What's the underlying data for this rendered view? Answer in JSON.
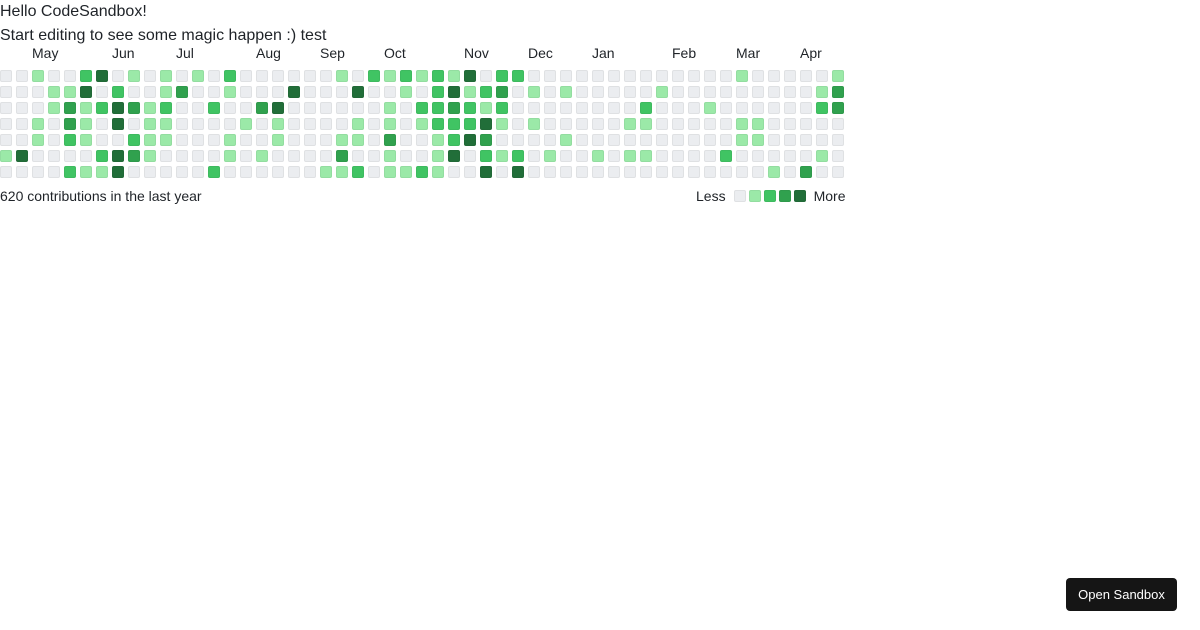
{
  "header": {
    "title": "Hello CodeSandbox!",
    "subtitle": "Start editing to see some magic happen :) test"
  },
  "calendar": {
    "months": [
      {
        "label": "May",
        "col": 2
      },
      {
        "label": "Jun",
        "col": 7
      },
      {
        "label": "Jul",
        "col": 11
      },
      {
        "label": "Aug",
        "col": 16
      },
      {
        "label": "Sep",
        "col": 20
      },
      {
        "label": "Oct",
        "col": 24
      },
      {
        "label": "Nov",
        "col": 29
      },
      {
        "label": "Dec",
        "col": 33
      },
      {
        "label": "Jan",
        "col": 37
      },
      {
        "label": "Feb",
        "col": 42
      },
      {
        "label": "Mar",
        "col": 46
      },
      {
        "label": "Apr",
        "col": 50
      }
    ],
    "level_colors": [
      "#ebedf0",
      "#9be9a8",
      "#40c463",
      "#30a14e",
      "#216e39"
    ],
    "rows": [
      [
        0,
        0,
        1,
        0,
        0,
        2,
        4,
        0,
        1,
        0,
        1,
        0,
        1,
        0,
        2,
        0,
        0,
        0,
        0,
        0,
        0,
        1,
        0,
        2,
        1,
        2,
        1,
        2,
        1,
        4,
        0,
        2,
        2,
        0,
        0,
        0,
        0,
        0,
        0,
        0,
        0,
        0,
        0,
        0,
        0,
        0,
        1,
        0,
        0,
        0,
        0,
        0,
        1
      ],
      [
        0,
        0,
        0,
        1,
        1,
        4,
        0,
        2,
        0,
        0,
        1,
        3,
        0,
        0,
        1,
        0,
        0,
        0,
        4,
        0,
        0,
        0,
        4,
        0,
        0,
        1,
        0,
        2,
        4,
        1,
        2,
        3,
        0,
        1,
        0,
        1,
        0,
        0,
        0,
        0,
        0,
        1,
        0,
        0,
        0,
        0,
        0,
        0,
        0,
        0,
        0,
        1,
        3
      ],
      [
        0,
        0,
        0,
        1,
        3,
        1,
        2,
        4,
        3,
        1,
        2,
        0,
        0,
        2,
        0,
        0,
        3,
        4,
        0,
        0,
        0,
        0,
        0,
        0,
        1,
        0,
        2,
        2,
        3,
        2,
        1,
        2,
        0,
        0,
        0,
        0,
        0,
        0,
        0,
        0,
        2,
        0,
        0,
        0,
        1,
        0,
        0,
        0,
        0,
        0,
        0,
        2,
        3
      ],
      [
        0,
        0,
        1,
        0,
        3,
        1,
        0,
        4,
        0,
        1,
        1,
        0,
        0,
        0,
        0,
        1,
        0,
        1,
        0,
        0,
        0,
        0,
        1,
        0,
        1,
        0,
        1,
        2,
        2,
        2,
        4,
        1,
        0,
        1,
        0,
        0,
        0,
        0,
        0,
        1,
        1,
        0,
        0,
        0,
        0,
        0,
        1,
        1,
        0,
        0,
        0,
        0,
        0
      ],
      [
        0,
        0,
        1,
        0,
        2,
        1,
        0,
        0,
        2,
        1,
        1,
        0,
        0,
        0,
        1,
        0,
        0,
        1,
        0,
        0,
        0,
        1,
        1,
        0,
        3,
        0,
        0,
        1,
        2,
        4,
        3,
        0,
        0,
        0,
        0,
        1,
        0,
        0,
        0,
        0,
        0,
        0,
        0,
        0,
        0,
        0,
        1,
        1,
        0,
        0,
        0,
        0,
        0
      ],
      [
        1,
        4,
        0,
        0,
        0,
        0,
        2,
        4,
        3,
        1,
        0,
        0,
        0,
        0,
        1,
        0,
        1,
        0,
        0,
        0,
        0,
        3,
        0,
        0,
        1,
        0,
        0,
        1,
        4,
        0,
        2,
        1,
        2,
        0,
        1,
        0,
        0,
        1,
        0,
        1,
        1,
        0,
        0,
        0,
        0,
        2,
        0,
        0,
        0,
        0,
        0,
        1,
        0
      ],
      [
        0,
        0,
        0,
        0,
        2,
        1,
        1,
        4,
        0,
        0,
        0,
        0,
        0,
        2,
        0,
        0,
        0,
        0,
        0,
        0,
        1,
        1,
        2,
        0,
        1,
        1,
        2,
        1,
        0,
        0,
        4,
        0,
        4,
        0,
        0,
        0,
        0,
        0,
        0,
        0,
        0,
        0,
        0,
        0,
        0,
        0,
        0,
        0,
        1,
        0,
        3,
        0,
        0
      ]
    ],
    "total_text": "620 contributions in the last year",
    "legend": {
      "less_label": "Less",
      "more_label": "More"
    }
  },
  "open_sandbox_button": {
    "label": "Open Sandbox"
  }
}
